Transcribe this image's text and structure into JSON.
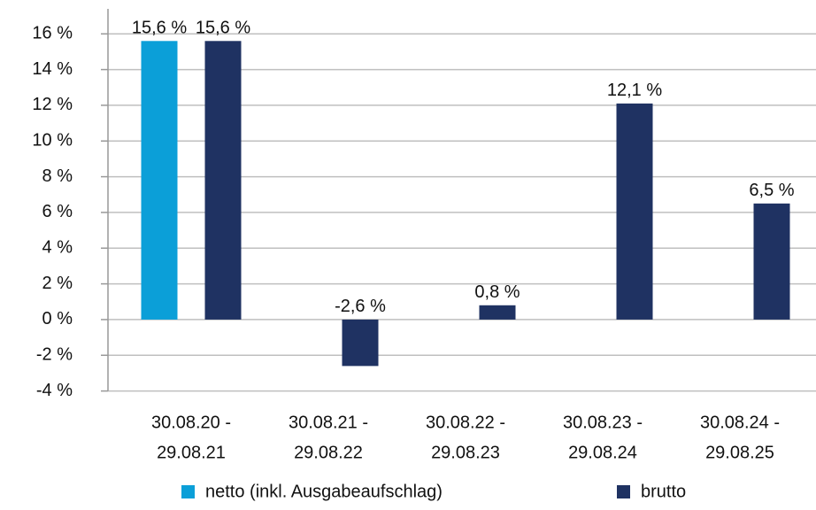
{
  "chart_data": {
    "type": "bar",
    "categories": [
      [
        "30.08.20 -",
        "29.08.21"
      ],
      [
        "30.08.21 -",
        "29.08.22"
      ],
      [
        "30.08.22 -",
        "29.08.23"
      ],
      [
        "30.08.23 -",
        "29.08.24"
      ],
      [
        "30.08.24 -",
        "29.08.25"
      ]
    ],
    "series": [
      {
        "name": "netto (inkl. Ausgabeaufschlag)",
        "color": "#0b9fd8",
        "values": [
          15.6,
          null,
          null,
          null,
          null
        ],
        "value_labels": [
          "15,6 %",
          null,
          null,
          null,
          null
        ]
      },
      {
        "name": "brutto",
        "color": "#1f3262",
        "values": [
          15.6,
          -2.6,
          0.8,
          12.1,
          6.5
        ],
        "value_labels": [
          "15,6 %",
          "-2,6 %",
          "0,8 %",
          "12,1 %",
          "6,5 %"
        ]
      }
    ],
    "ylim": [
      -4,
      17.4
    ],
    "yticks": [
      {
        "value": -4,
        "label": "-4 %"
      },
      {
        "value": -2,
        "label": "-2 %"
      },
      {
        "value": 0,
        "label": "0 %"
      },
      {
        "value": 2,
        "label": "2 %"
      },
      {
        "value": 4,
        "label": "4 %"
      },
      {
        "value": 6,
        "label": "6 %"
      },
      {
        "value": 8,
        "label": "8 %"
      },
      {
        "value": 10,
        "label": "10 %"
      },
      {
        "value": 12,
        "label": "12 %"
      },
      {
        "value": 14,
        "label": "14 %"
      },
      {
        "value": 16,
        "label": "16 %"
      }
    ],
    "grid": true,
    "legend": "bottom"
  }
}
